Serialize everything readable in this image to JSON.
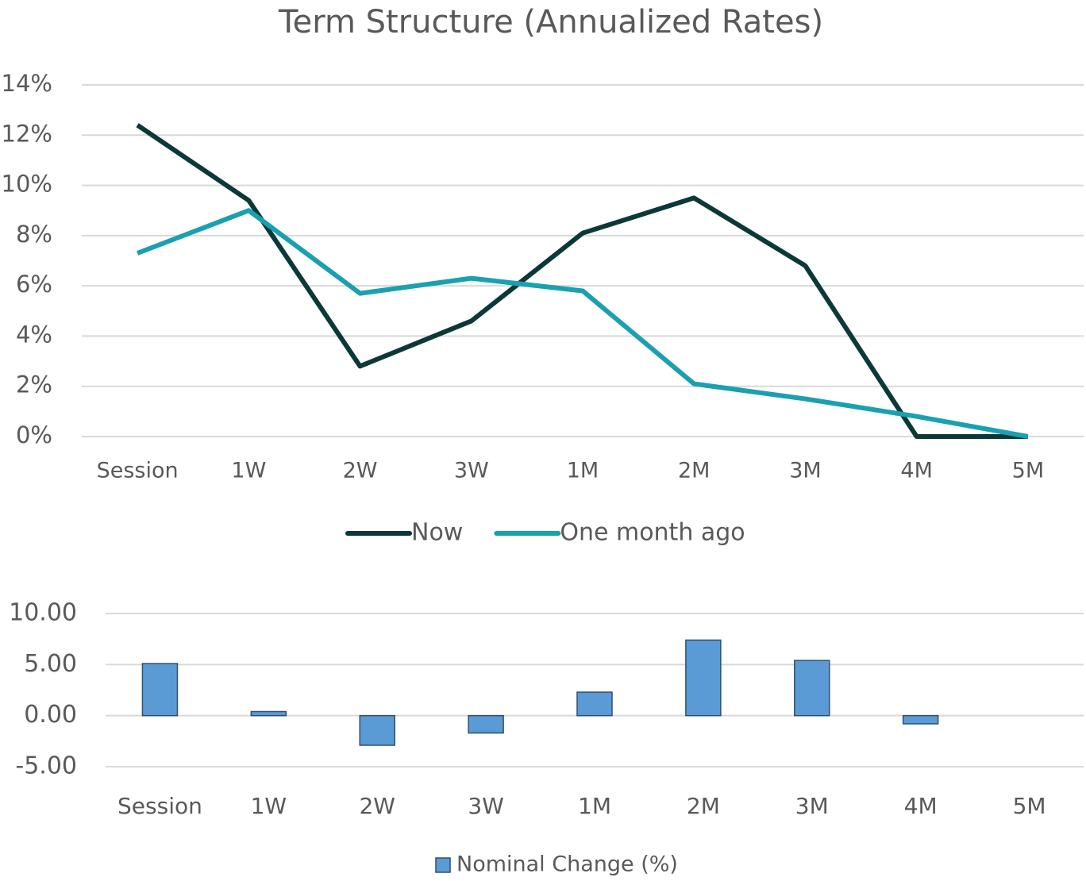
{
  "chart_data": [
    {
      "type": "line",
      "title": "Term Structure (Annualized Rates)",
      "categories": [
        "Session",
        "1W",
        "2W",
        "3W",
        "1M",
        "2M",
        "3M",
        "4M",
        "5M"
      ],
      "series": [
        {
          "name": "Now",
          "color": "#0d3838",
          "values": [
            12.4,
            9.4,
            2.8,
            4.6,
            8.1,
            9.5,
            6.8,
            0,
            0
          ]
        },
        {
          "name": "One month ago",
          "color": "#1aa0b0",
          "values": [
            7.3,
            9.0,
            5.7,
            6.3,
            5.8,
            2.1,
            1.5,
            0.8,
            0
          ]
        }
      ],
      "ylim": [
        0,
        14
      ],
      "yticks": [
        {
          "value": 0,
          "label": "0%"
        },
        {
          "value": 2,
          "label": "2%"
        },
        {
          "value": 4,
          "label": "4%"
        },
        {
          "value": 6,
          "label": "6%"
        },
        {
          "value": 8,
          "label": "8%"
        },
        {
          "value": 10,
          "label": "10%"
        },
        {
          "value": 12,
          "label": "12%"
        },
        {
          "value": 14,
          "label": "14%"
        }
      ],
      "grid": true,
      "legend": "bottom"
    },
    {
      "type": "bar",
      "categories": [
        "Session",
        "1W",
        "2W",
        "3W",
        "1M",
        "2M",
        "3M",
        "4M",
        "5M"
      ],
      "series": [
        {
          "name": "Nominal Change (%)",
          "color": "#5b9bd5",
          "values": [
            5.1,
            0.4,
            -2.9,
            -1.7,
            2.3,
            7.4,
            5.4,
            -0.8,
            0
          ]
        }
      ],
      "ylim": [
        -5,
        10
      ],
      "yticks": [
        {
          "value": -5,
          "label": "-5.00"
        },
        {
          "value": 0,
          "label": "0.00"
        },
        {
          "value": 5,
          "label": "5.00"
        },
        {
          "value": 10,
          "label": "10.00"
        }
      ],
      "grid": true,
      "legend": "bottom"
    }
  ]
}
